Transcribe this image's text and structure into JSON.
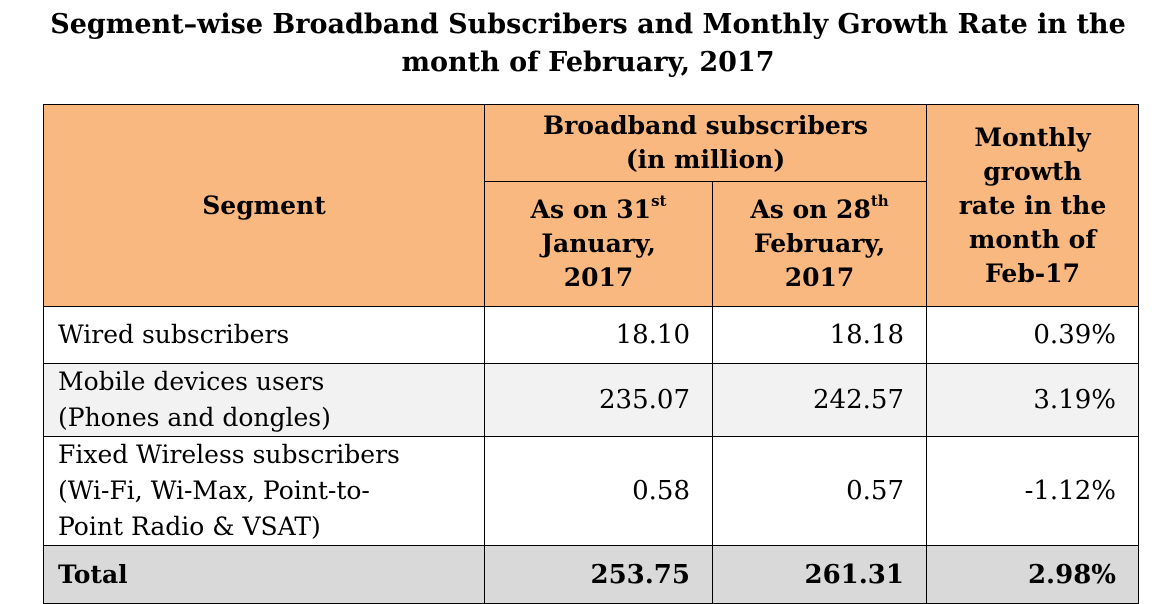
{
  "title": {
    "line1": "Segment–wise Broadband Subscribers and Monthly Growth Rate in the",
    "line2": "month of February, 2017"
  },
  "header": {
    "segment": "Segment",
    "broadband_line1": "Broadband subscribers",
    "broadband_line2": "(in million)",
    "col_jan": {
      "line1": "As on 31",
      "sup": "st",
      "line2": "January,",
      "line3": "2017"
    },
    "col_feb": {
      "line1": "As on 28",
      "sup": "th",
      "line2": "February,",
      "line3": "2017"
    },
    "growth_lines": [
      "Monthly",
      "growth",
      "rate in the",
      "month of",
      "Feb-17"
    ]
  },
  "rows": [
    {
      "segment_lines": [
        "Wired subscribers"
      ],
      "jan": "18.10",
      "feb": "18.18",
      "growth": "0.39%"
    },
    {
      "segment_lines": [
        "Mobile devices users",
        "(Phones and dongles)"
      ],
      "jan": "235.07",
      "feb": "242.57",
      "growth": "3.19%"
    },
    {
      "segment_lines": [
        "Fixed Wireless subscribers",
        "(Wi-Fi, Wi-Max, Point-to-",
        "Point Radio & VSAT)"
      ],
      "jan": "0.58",
      "feb": "0.57",
      "growth": "-1.12%"
    }
  ],
  "total": {
    "segment": "Total",
    "jan": "253.75",
    "feb": "261.31",
    "growth": "2.98%"
  },
  "colors": {
    "header_bg": "#f9b880",
    "alt_row_bg": "#f2f2f2",
    "total_bg": "#d9d9d9"
  }
}
